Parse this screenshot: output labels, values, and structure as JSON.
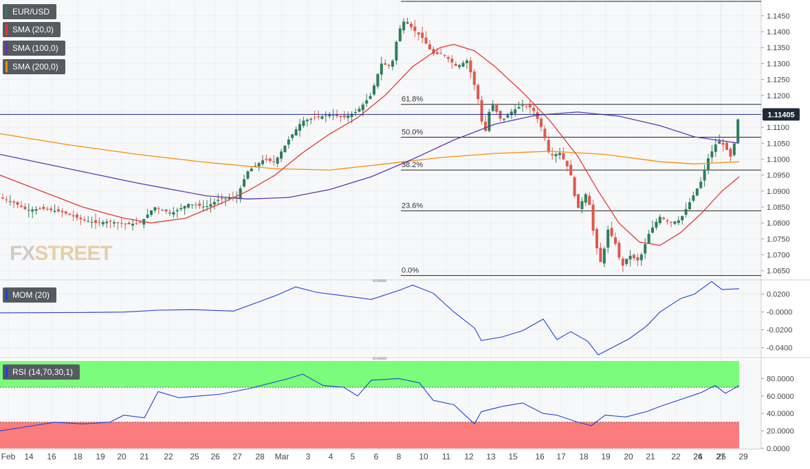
{
  "chart_data": [
    {
      "panel": "price",
      "type": "candlestick",
      "symbol": "EUR/USD",
      "legend": [
        {
          "label": "EUR/USD",
          "color": "#2e7d5b"
        },
        {
          "label": "SMA (20,0)",
          "color": "#e53935"
        },
        {
          "label": "SMA (100,0)",
          "color": "#5e35b1"
        },
        {
          "label": "SMA (200,0)",
          "color": "#fb8c00"
        }
      ],
      "last_price": "1.11405",
      "ylim": [
        1.063,
        1.1495
      ],
      "yticks": [
        "1.1450",
        "1.1400",
        "1.1350",
        "1.1300",
        "1.1250",
        "1.1200",
        "1.1150",
        "1.1100",
        "1.1050",
        "1.1000",
        "1.0950",
        "1.0900",
        "1.0850",
        "1.0800",
        "1.0750",
        "1.0700",
        "1.0650"
      ],
      "fibonacci": [
        {
          "label": "61.8%",
          "value": 1.1172
        },
        {
          "label": "50.0%",
          "value": 1.1069
        },
        {
          "label": "38.2%",
          "value": 1.0966
        },
        {
          "label": "23.6%",
          "value": 1.0838
        },
        {
          "label": "0.0%",
          "value": 1.0635
        }
      ],
      "fib_high": 1.1495,
      "colors": {
        "up": "#2e7d5b",
        "down": "#e0584b",
        "sma20": "#e53935",
        "sma100": "#5e35b1",
        "sma200": "#fb8c00",
        "price_line": "#1a237e"
      }
    },
    {
      "panel": "momentum",
      "type": "line",
      "legend": {
        "label": "MOM (20)",
        "color": "#1e40d8"
      },
      "ylim": [
        -0.048,
        0.032
      ],
      "yticks": [
        "0.0200",
        "-0.0000",
        "-0.0200",
        "-0.0400"
      ],
      "line_color": "#1e40d8"
    },
    {
      "panel": "rsi",
      "type": "line",
      "legend": {
        "label": "RSI (14,70,30,1)",
        "color": "#1e40d8"
      },
      "ylim": [
        0,
        100
      ],
      "yticks": [
        "80.0000",
        "60.0000",
        "40.0000",
        "20.0000",
        "0.0000"
      ],
      "overbought": 70,
      "oversold": 30,
      "line_color": "#1e40d8",
      "colors": {
        "overbought_fill": "#7bfc7b",
        "oversold_fill": "#fb7c7c"
      }
    }
  ],
  "x_axis": {
    "labels": [
      "Feb",
      "14",
      "16",
      "18",
      "19",
      "20",
      "21",
      "22",
      "25",
      "26",
      "27",
      "28",
      "Mar",
      "3",
      "4",
      "5",
      "6",
      "8",
      "10",
      "11",
      "12",
      "13",
      "15",
      "16",
      "17",
      "18",
      "19",
      "20",
      "21",
      "22",
      "24",
      "25",
      "26",
      "27",
      "29"
    ]
  },
  "watermark": {
    "part1": "FX",
    "part2": "STREET"
  }
}
